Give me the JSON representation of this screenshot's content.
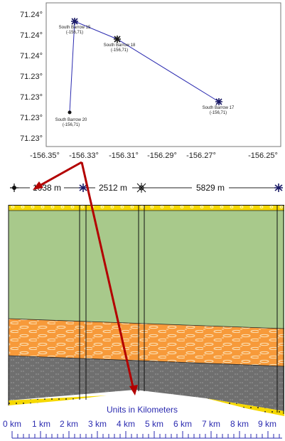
{
  "map": {
    "x_ticks": [
      "-156.35°",
      "-156.33°",
      "-156.31°",
      "-156.29°",
      "-156.27°",
      "-156.25°"
    ],
    "y_ticks": [
      "71.24°",
      "71.24°",
      "71.24°",
      "71.23°",
      "71.23°",
      "71.23°"
    ],
    "wells": [
      {
        "name": "South Barrow 15",
        "coord": "(-156,71)"
      },
      {
        "name": "South Barrow 18",
        "coord": "(-156,71)"
      },
      {
        "name": "South Barrow 17",
        "coord": "(-156,71)"
      },
      {
        "name": "South Barrow 20",
        "coord": "(-156,71)"
      }
    ]
  },
  "distances": [
    "1038 m",
    "2512 m",
    "5829 m"
  ],
  "section": {
    "colors": {
      "top_band": "#f5d800",
      "green": "#a8c98b",
      "orange": "#f79a3a",
      "gray": "#6f6f6f",
      "yellow": "#f5d800",
      "arrow": "#b30000",
      "line": "#2b2bb0"
    }
  },
  "scale": {
    "title": "Units in Kilometers",
    "labels": [
      "0 km",
      "1 km",
      "2 km",
      "3 km",
      "4 km",
      "5 km",
      "6 km",
      "7 km",
      "8 km",
      "9 km"
    ]
  }
}
